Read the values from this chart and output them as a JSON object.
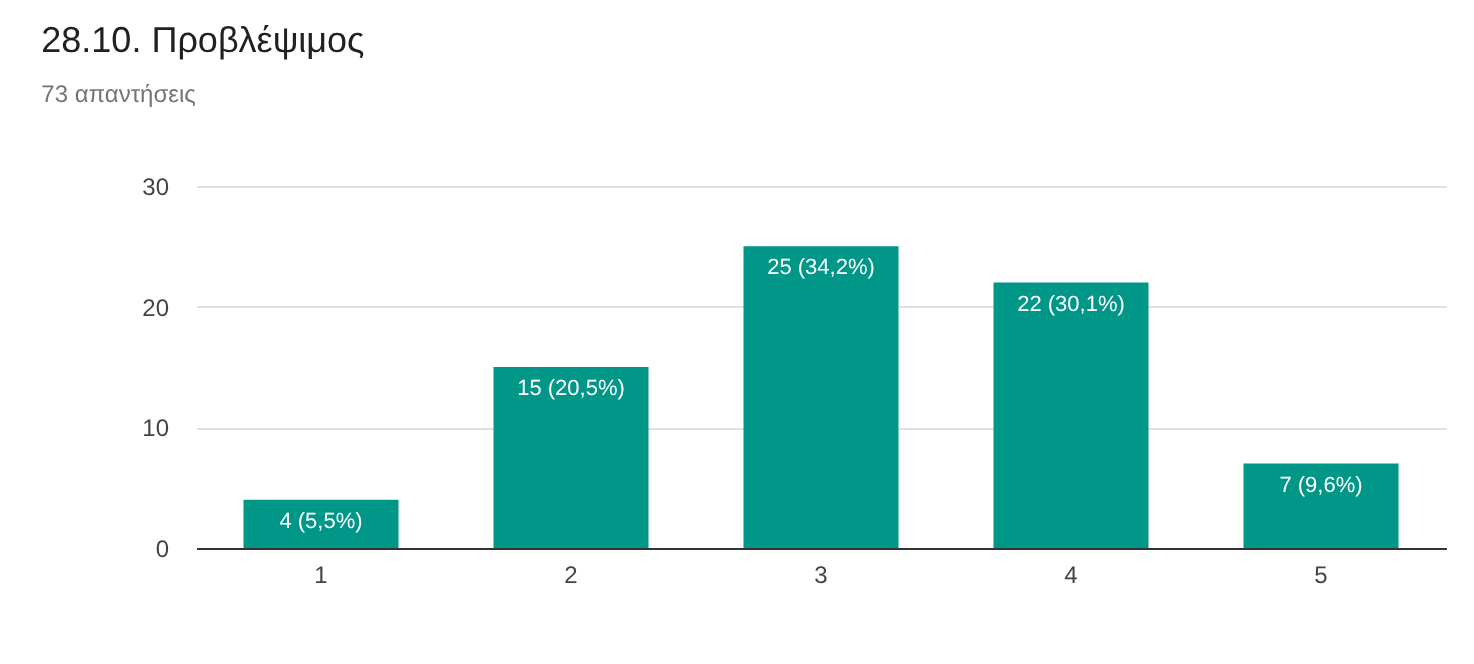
{
  "chart_data": {
    "type": "bar",
    "title": "28.10. Προβλέψιμος",
    "subtitle": "73 απαντήσεις",
    "categories": [
      "1",
      "2",
      "3",
      "4",
      "5"
    ],
    "values": [
      4,
      15,
      25,
      22,
      7
    ],
    "value_labels": [
      "4 (5,5%)",
      "15 (20,5%)",
      "25 (34,2%)",
      "22 (30,1%)",
      "7 (9,6%)"
    ],
    "color": "#009688",
    "ylim": [
      0,
      30
    ],
    "yticks": [
      0,
      10,
      20,
      30
    ],
    "grid": "y"
  }
}
